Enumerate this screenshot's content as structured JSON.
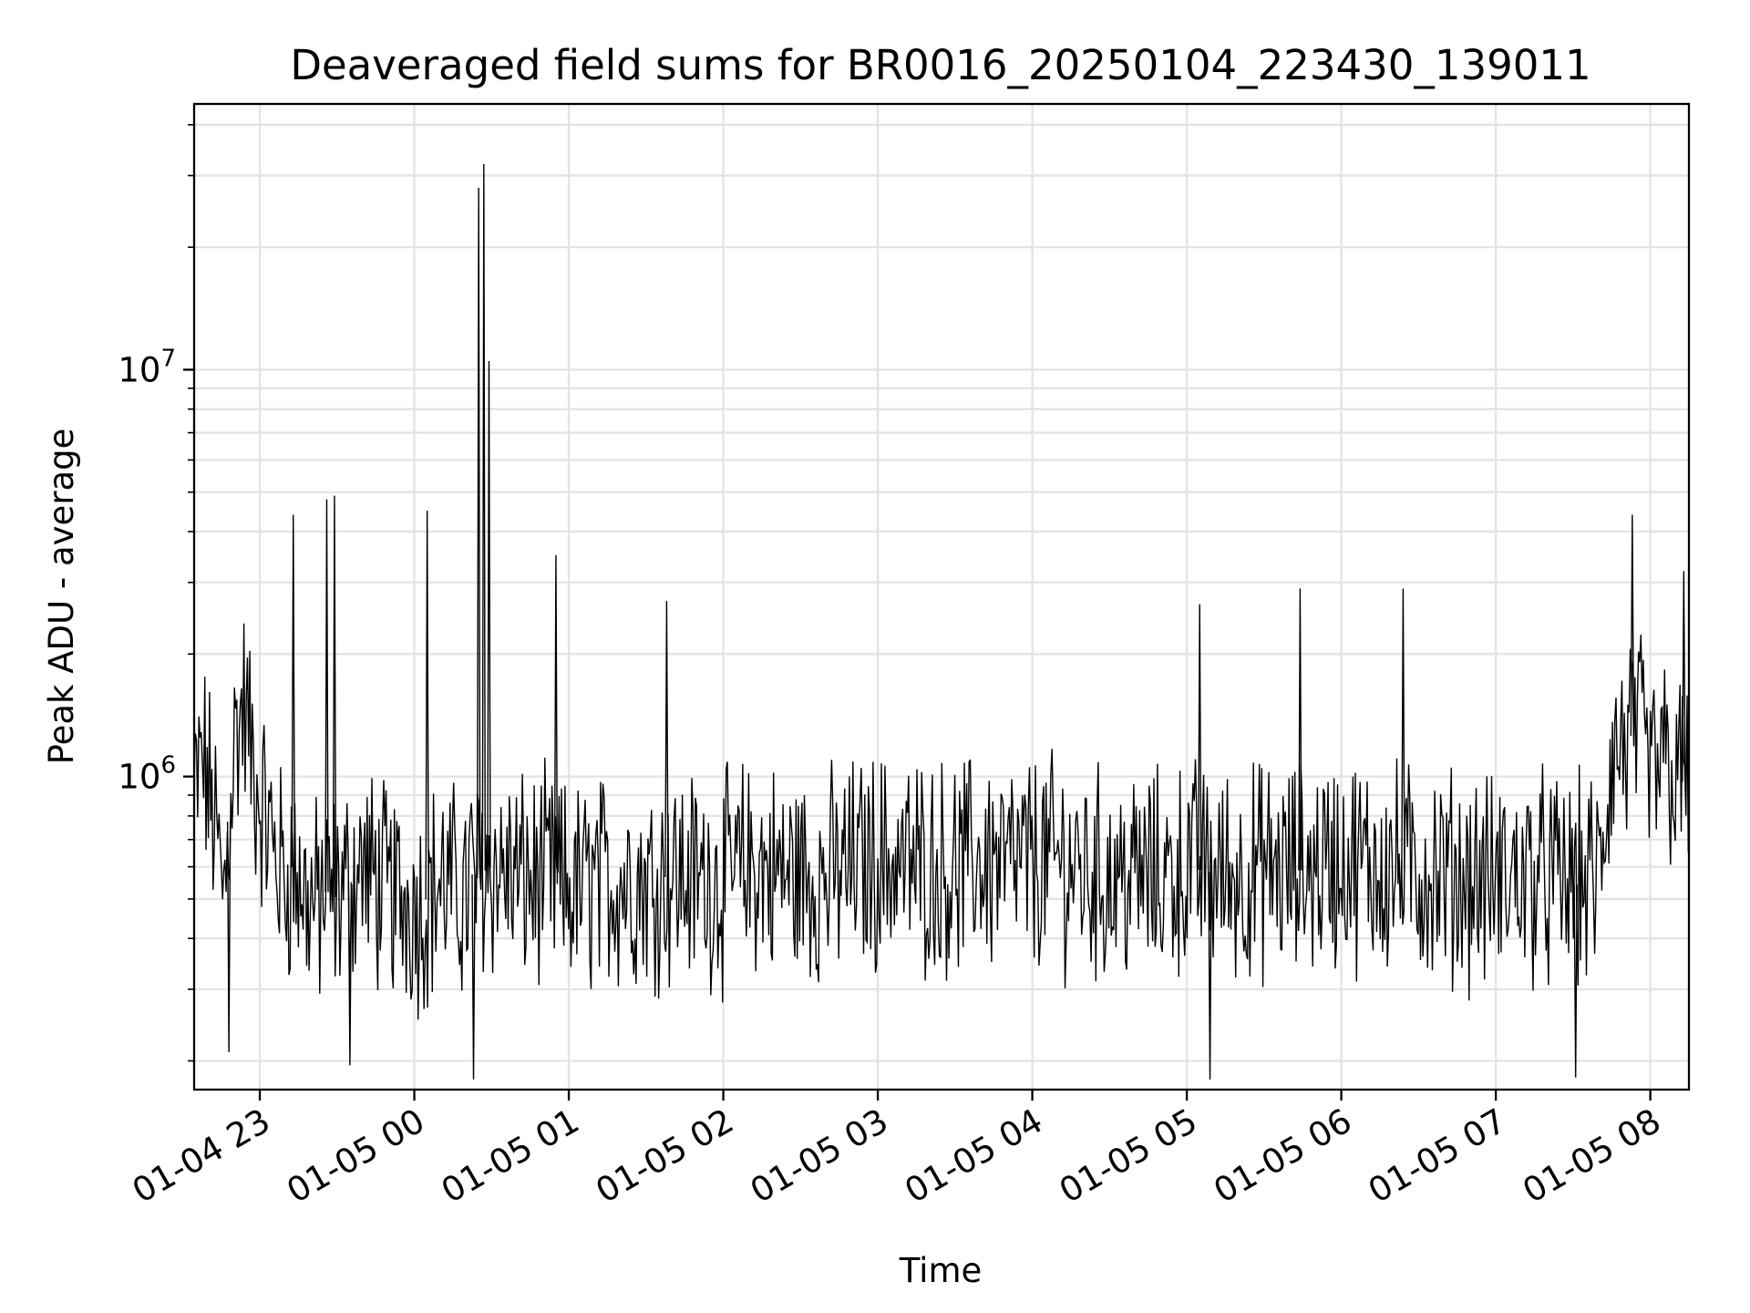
{
  "chart_data": {
    "type": "line",
    "title": "Deaveraged field sums for BR0016_20250104_223430_139011",
    "xlabel": "Time",
    "ylabel": "Peak ADU - average",
    "yscale": "log",
    "grid": true,
    "xlim": [
      "2025-01-04 22:34:30",
      "2025-01-05 08:15:00"
    ],
    "ylim": [
      170000,
      45000000
    ],
    "x_ticks": [
      {
        "value": "2025-01-04 23:00",
        "label": "01-04 23"
      },
      {
        "value": "2025-01-05 00:00",
        "label": "01-05 00"
      },
      {
        "value": "2025-01-05 01:00",
        "label": "01-05 01"
      },
      {
        "value": "2025-01-05 02:00",
        "label": "01-05 02"
      },
      {
        "value": "2025-01-05 03:00",
        "label": "01-05 03"
      },
      {
        "value": "2025-01-05 04:00",
        "label": "01-05 04"
      },
      {
        "value": "2025-01-05 05:00",
        "label": "01-05 05"
      },
      {
        "value": "2025-01-05 06:00",
        "label": "01-05 06"
      },
      {
        "value": "2025-01-05 07:00",
        "label": "01-05 07"
      },
      {
        "value": "2025-01-05 08:00",
        "label": "01-05 08"
      }
    ],
    "y_ticks": [
      {
        "value": 1000000,
        "base": "10",
        "exp": "6"
      },
      {
        "value": 10000000,
        "base": "10",
        "exp": "7"
      }
    ],
    "series": [
      {
        "color": "#000000",
        "x": [
          "2025-01-04 22:34:30",
          "2025-01-04 22:38",
          "2025-01-04 22:42",
          "2025-01-04 22:46",
          "2025-01-04 22:50",
          "2025-01-04 22:54",
          "2025-01-04 22:58",
          "2025-01-04 23:02",
          "2025-01-04 23:06",
          "2025-01-04 23:10",
          "2025-01-04 23:13",
          "2025-01-04 23:18",
          "2025-01-04 23:22",
          "2025-01-04 23:26",
          "2025-01-04 23:30",
          "2025-01-04 23:35",
          "2025-01-04 23:40",
          "2025-01-04 23:45",
          "2025-01-04 23:50",
          "2025-01-04 23:55",
          "2025-01-05 00:03",
          "2025-01-05 00:10",
          "2025-01-05 00:16",
          "2025-01-05 00:20",
          "2025-01-05 00:22",
          "2025-01-05 00:24",
          "2025-01-05 00:28",
          "2025-01-05 00:35",
          "2025-01-05 00:45",
          "2025-01-05 00:52",
          "2025-01-05 01:00",
          "2025-01-05 01:10",
          "2025-01-05 01:20",
          "2025-01-05 01:30",
          "2025-01-05 01:40",
          "2025-01-05 01:50",
          "2025-01-05 02:00",
          "2025-01-05 02:10",
          "2025-01-05 02:20",
          "2025-01-05 02:30",
          "2025-01-05 02:40",
          "2025-01-05 02:50",
          "2025-01-05 03:00",
          "2025-01-05 03:10",
          "2025-01-05 03:20",
          "2025-01-05 03:30",
          "2025-01-05 03:40",
          "2025-01-05 03:50",
          "2025-01-05 04:00",
          "2025-01-05 04:10",
          "2025-01-05 04:20",
          "2025-01-05 04:30",
          "2025-01-05 04:40",
          "2025-01-05 04:50",
          "2025-01-05 05:00",
          "2025-01-05 05:10",
          "2025-01-05 05:20",
          "2025-01-05 05:30",
          "2025-01-05 05:40",
          "2025-01-05 05:50",
          "2025-01-05 06:00",
          "2025-01-05 06:10",
          "2025-01-05 06:20",
          "2025-01-05 06:30",
          "2025-01-05 06:40",
          "2025-01-05 06:50",
          "2025-01-05 07:00",
          "2025-01-05 07:10",
          "2025-01-05 07:20",
          "2025-01-05 07:30",
          "2025-01-05 07:40",
          "2025-01-05 07:45",
          "2025-01-05 07:50",
          "2025-01-05 07:55",
          "2025-01-05 08:00",
          "2025-01-05 08:05",
          "2025-01-05 08:10",
          "2025-01-05 08:15"
        ],
        "y": [
          900000,
          1100000,
          800000,
          500000,
          1200000,
          1500000,
          1000000,
          800000,
          650000,
          550000,
          600000,
          500000,
          480000,
          520000,
          500000,
          550000,
          600000,
          550000,
          520000,
          500000,
          480000,
          550000,
          520000,
          500000,
          600000,
          550000,
          600000,
          580000,
          550000,
          560000,
          520000,
          540000,
          560000,
          550000,
          570000,
          560000,
          550000,
          600000,
          580000,
          570000,
          560000,
          600000,
          620000,
          610000,
          600000,
          590000,
          620000,
          600000,
          610000,
          620000,
          580000,
          560000,
          570000,
          560000,
          600000,
          580000,
          570000,
          590000,
          580000,
          600000,
          620000,
          600000,
          590000,
          580000,
          570000,
          560000,
          550000,
          570000,
          560000,
          540000,
          560000,
          1100000,
          1200000,
          1300000,
          1000000,
          1100000,
          1000000,
          950000
        ]
      }
    ],
    "spikes": [
      {
        "x": "2025-01-04 23:13",
        "y": 4400000
      },
      {
        "x": "2025-01-04 23:26",
        "y": 4800000
      },
      {
        "x": "2025-01-04 23:29",
        "y": 4900000
      },
      {
        "x": "2025-01-05 00:05",
        "y": 4500000
      },
      {
        "x": "2025-01-05 00:25",
        "y": 28000000
      },
      {
        "x": "2025-01-05 00:27",
        "y": 32000000
      },
      {
        "x": "2025-01-05 00:29",
        "y": 10500000
      },
      {
        "x": "2025-01-05 00:55",
        "y": 3500000
      },
      {
        "x": "2025-01-05 01:38",
        "y": 2700000
      },
      {
        "x": "2025-01-05 05:05",
        "y": 2650000
      },
      {
        "x": "2025-01-05 05:44",
        "y": 2900000
      },
      {
        "x": "2025-01-05 06:24",
        "y": 2900000
      },
      {
        "x": "2025-01-05 07:53",
        "y": 4400000
      },
      {
        "x": "2025-01-05 08:13",
        "y": 3200000
      }
    ],
    "dips": [
      {
        "x": "2025-01-04 22:48",
        "y": 210000
      },
      {
        "x": "2025-01-04 23:35",
        "y": 195000
      },
      {
        "x": "2025-01-05 00:23",
        "y": 180000
      },
      {
        "x": "2025-01-05 05:09",
        "y": 180000
      },
      {
        "x": "2025-01-05 07:31",
        "y": 182000
      }
    ]
  }
}
